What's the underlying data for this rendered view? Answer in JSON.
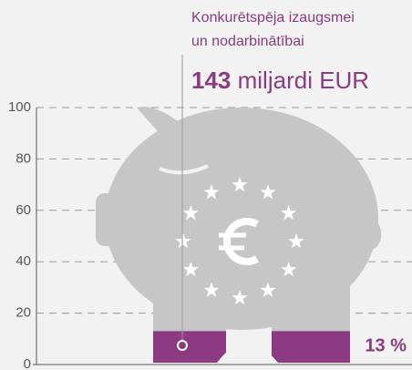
{
  "chart_data": {
    "type": "fill",
    "title_lines": [
      "Konkurētspēja izaugsmei",
      "un nodarbinātībai"
    ],
    "amount": 143,
    "amount_unit": "miljardi EUR",
    "value": 13,
    "value_label": "13 %",
    "color": "#8c3b83",
    "ylim": [
      0,
      100
    ],
    "yticks": [
      0,
      20,
      40,
      60,
      80,
      100
    ],
    "grid": true
  }
}
